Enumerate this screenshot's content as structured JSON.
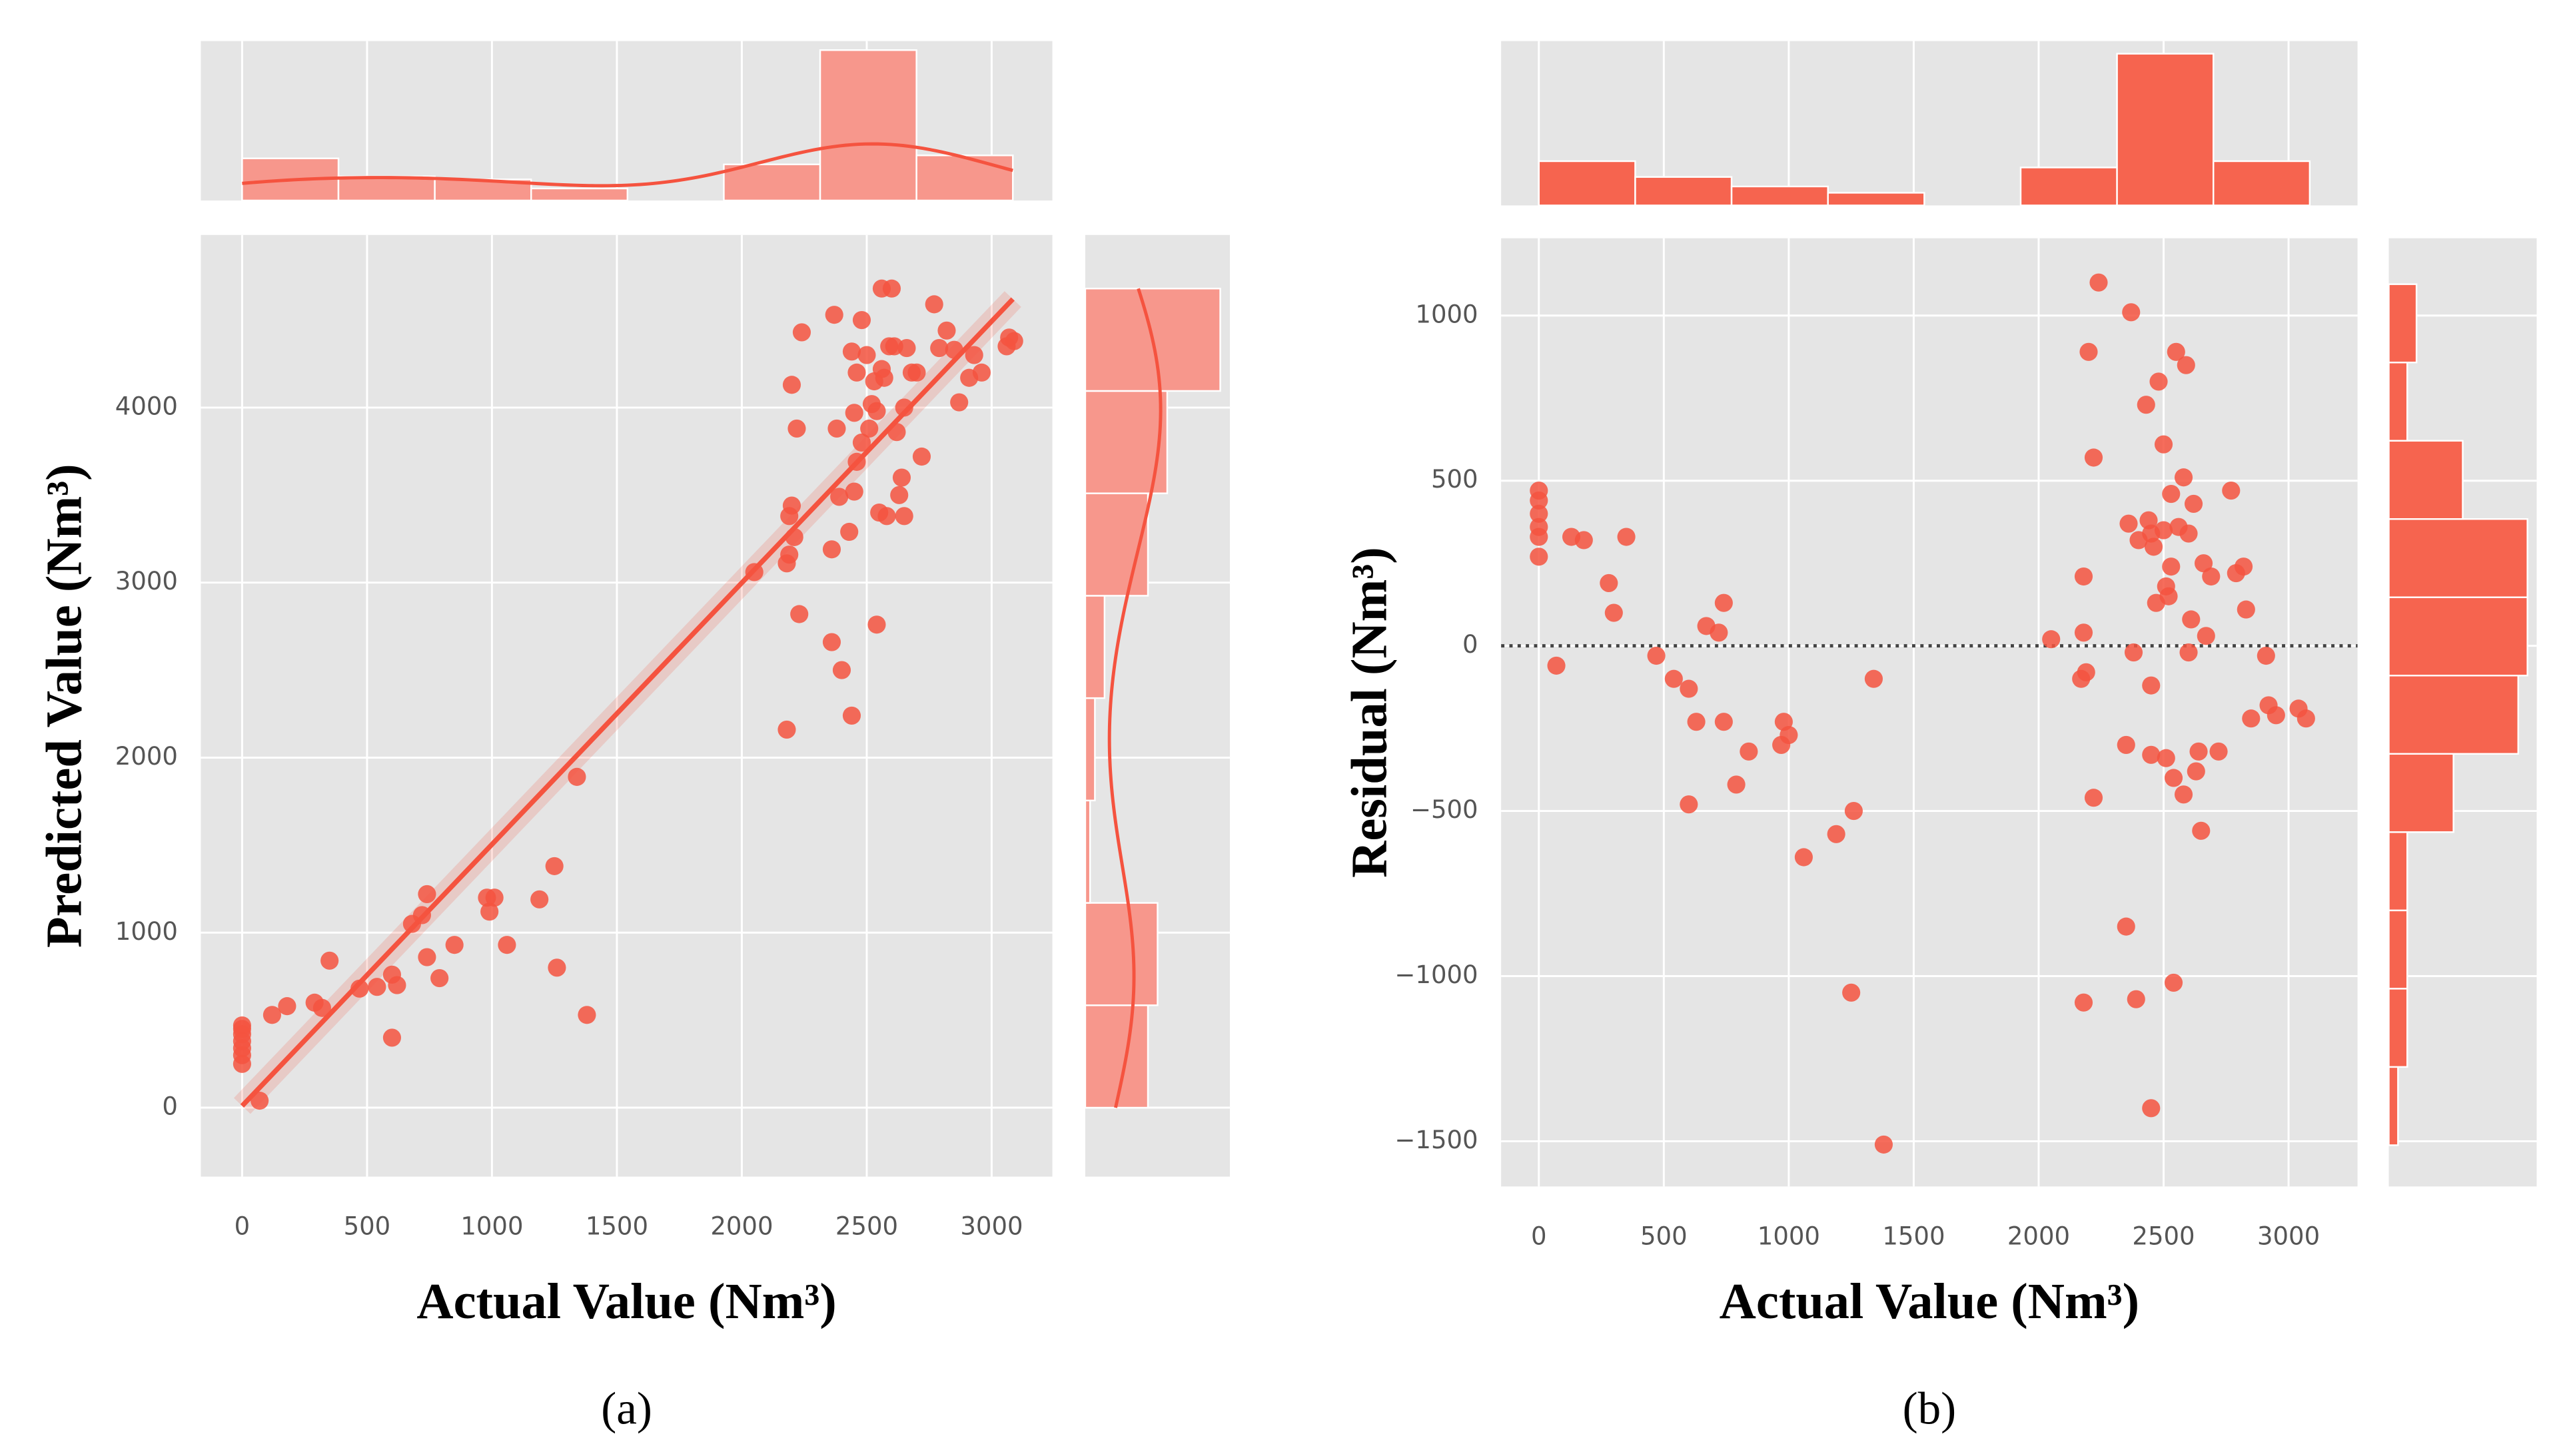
{
  "chart_data": [
    {
      "type": "scatter",
      "xlabel": "Actual Value (Nm³)",
      "ylabel": "Predicted Value (Nm³)",
      "caption": "(a)",
      "color": "#f5533f",
      "grid": true,
      "kde": true,
      "xlim": [
        -165,
        3243
      ],
      "ylim": [
        -394,
        4986
      ],
      "xticks": [
        0,
        500,
        1000,
        1500,
        2000,
        2500,
        3000
      ],
      "yticks": [
        0,
        1000,
        2000,
        3000,
        4000
      ],
      "x": [
        0,
        0,
        0,
        0,
        0,
        0,
        0,
        70,
        120,
        180,
        290,
        320,
        350,
        470,
        540,
        600,
        600,
        620,
        680,
        720,
        740,
        740,
        790,
        850,
        980,
        990,
        1010,
        1060,
        1190,
        1250,
        1260,
        1340,
        1380,
        2050,
        2180,
        2180,
        2190,
        2190,
        2200,
        2200,
        2210,
        2220,
        2230,
        2240,
        2360,
        2360,
        2370,
        2380,
        2390,
        2400,
        2430,
        2440,
        2440,
        2450,
        2450,
        2460,
        2480,
        2480,
        2500,
        2510,
        2520,
        2530,
        2540,
        2540,
        2550,
        2560,
        2560,
        2570,
        2580,
        2590,
        2600,
        2610,
        2620,
        2630,
        2640,
        2650,
        2650,
        2660,
        2680,
        2700,
        2720,
        2770,
        2790,
        2820,
        2850,
        2870,
        2910,
        2930,
        2960,
        3060,
        3070,
        3090,
        2460
      ],
      "y": [
        250,
        300,
        340,
        380,
        420,
        450,
        470,
        40,
        530,
        580,
        600,
        570,
        840,
        680,
        690,
        400,
        760,
        700,
        1050,
        1100,
        1220,
        860,
        740,
        930,
        1200,
        1120,
        1200,
        930,
        1190,
        1380,
        800,
        1890,
        530,
        3060,
        2160,
        3110,
        3160,
        3380,
        3440,
        4130,
        3260,
        3880,
        2820,
        4430,
        3190,
        2660,
        4530,
        3880,
        3490,
        2500,
        3290,
        2240,
        4320,
        3970,
        3520,
        3690,
        4500,
        3800,
        4300,
        3880,
        4020,
        4150,
        2760,
        3980,
        3400,
        4680,
        4220,
        4170,
        3380,
        4350,
        4680,
        4350,
        3860,
        3500,
        3600,
        4000,
        3380,
        4340,
        4200,
        4200,
        3720,
        4590,
        4340,
        4440,
        4330,
        4030,
        4170,
        4300,
        4200,
        4350,
        4400,
        4380,
        4200
      ],
      "regression_line": {
        "x": [
          0,
          3085
        ],
        "y": [
          10,
          4620
        ]
      },
      "top_hist": {
        "color": "#f7978c",
        "bins": [
          0,
          385.6,
          771.2,
          1156.8,
          1542.4,
          1928,
          2313.6,
          2699.2,
          3084.8
        ],
        "counts": [
          14,
          8,
          7,
          4,
          0,
          12,
          50,
          15
        ],
        "ylim": [
          0,
          53
        ]
      },
      "right_hist": {
        "color": "#f7978c",
        "bins": [
          0,
          585,
          1170,
          1755,
          2340,
          2925,
          3510,
          4095,
          4680
        ],
        "counts": [
          13,
          15,
          1,
          2,
          4,
          13,
          17,
          28
        ],
        "xlim": [
          0,
          30
        ]
      }
    },
    {
      "type": "scatter",
      "xlabel": "Actual Value (Nm³)",
      "ylabel": "Residual (Nm³)",
      "caption": "(b)",
      "color": "#f5533f",
      "grid": true,
      "kde": false,
      "hline": 0,
      "xlim": [
        -151,
        3276
      ],
      "ylim": [
        -1637,
        1234
      ],
      "xticks": [
        0,
        500,
        1000,
        1500,
        2000,
        2500,
        3000
      ],
      "yticks": [
        {
          "value": -1500,
          "label": "−1500"
        },
        {
          "value": -1000,
          "label": "−1000"
        },
        {
          "value": -500,
          "label": "−500"
        },
        0,
        500,
        1000
      ],
      "x": [
        0,
        0,
        0,
        0,
        0,
        0,
        70,
        130,
        180,
        280,
        300,
        350,
        470,
        540,
        600,
        600,
        630,
        670,
        720,
        740,
        740,
        790,
        840,
        970,
        980,
        1000,
        1060,
        1190,
        1250,
        1260,
        1340,
        1380,
        2050,
        2170,
        2180,
        2180,
        2190,
        2180,
        2200,
        2220,
        2220,
        2240,
        2350,
        2350,
        2360,
        2370,
        2380,
        2390,
        2400,
        2430,
        2440,
        2450,
        2450,
        2450,
        2460,
        2470,
        2480,
        2500,
        2500,
        2510,
        2510,
        2520,
        2530,
        2530,
        2540,
        2540,
        2550,
        2560,
        2580,
        2580,
        2590,
        2600,
        2600,
        2610,
        2620,
        2630,
        2640,
        2650,
        2660,
        2670,
        2690,
        2720,
        2770,
        2790,
        2820,
        2830,
        2850,
        2910,
        2920,
        2950,
        3040,
        3070,
        2450
      ],
      "y": [
        270,
        330,
        360,
        400,
        440,
        470,
        -60,
        330,
        320,
        190,
        100,
        330,
        -30,
        -100,
        -480,
        -130,
        -230,
        60,
        40,
        130,
        -230,
        -420,
        -320,
        -300,
        -230,
        -270,
        -640,
        -570,
        -1050,
        -500,
        -100,
        -1510,
        20,
        -100,
        210,
        40,
        -80,
        -1080,
        890,
        570,
        -460,
        1100,
        -850,
        -300,
        370,
        1010,
        -20,
        -1070,
        320,
        730,
        380,
        -330,
        -120,
        -1400,
        300,
        130,
        800,
        610,
        350,
        -340,
        180,
        150,
        460,
        240,
        -400,
        -1020,
        890,
        360,
        -450,
        510,
        850,
        340,
        -20,
        80,
        430,
        -380,
        -320,
        -560,
        250,
        30,
        210,
        -320,
        470,
        220,
        240,
        110,
        -220,
        -30,
        -180,
        -210,
        -190,
        -220,
        340
      ],
      "top_hist": {
        "color": "#f6644f",
        "bins": [
          0,
          385.6,
          771.2,
          1156.8,
          1542.4,
          1928,
          2313.6,
          2699.2,
          3084.8
        ],
        "counts": [
          14,
          9,
          6,
          4,
          0,
          12,
          48,
          14
        ],
        "ylim": [
          0,
          52
        ]
      },
      "right_hist": {
        "color": "#f6644f",
        "bins": [
          -1512,
          -1275,
          -1038,
          -801,
          -564,
          -327,
          -90,
          147,
          384,
          621,
          858,
          1095
        ],
        "counts": [
          1,
          2,
          2,
          2,
          7,
          14,
          15,
          15,
          8,
          2,
          3
        ],
        "xlim": [
          0,
          16
        ]
      }
    }
  ]
}
